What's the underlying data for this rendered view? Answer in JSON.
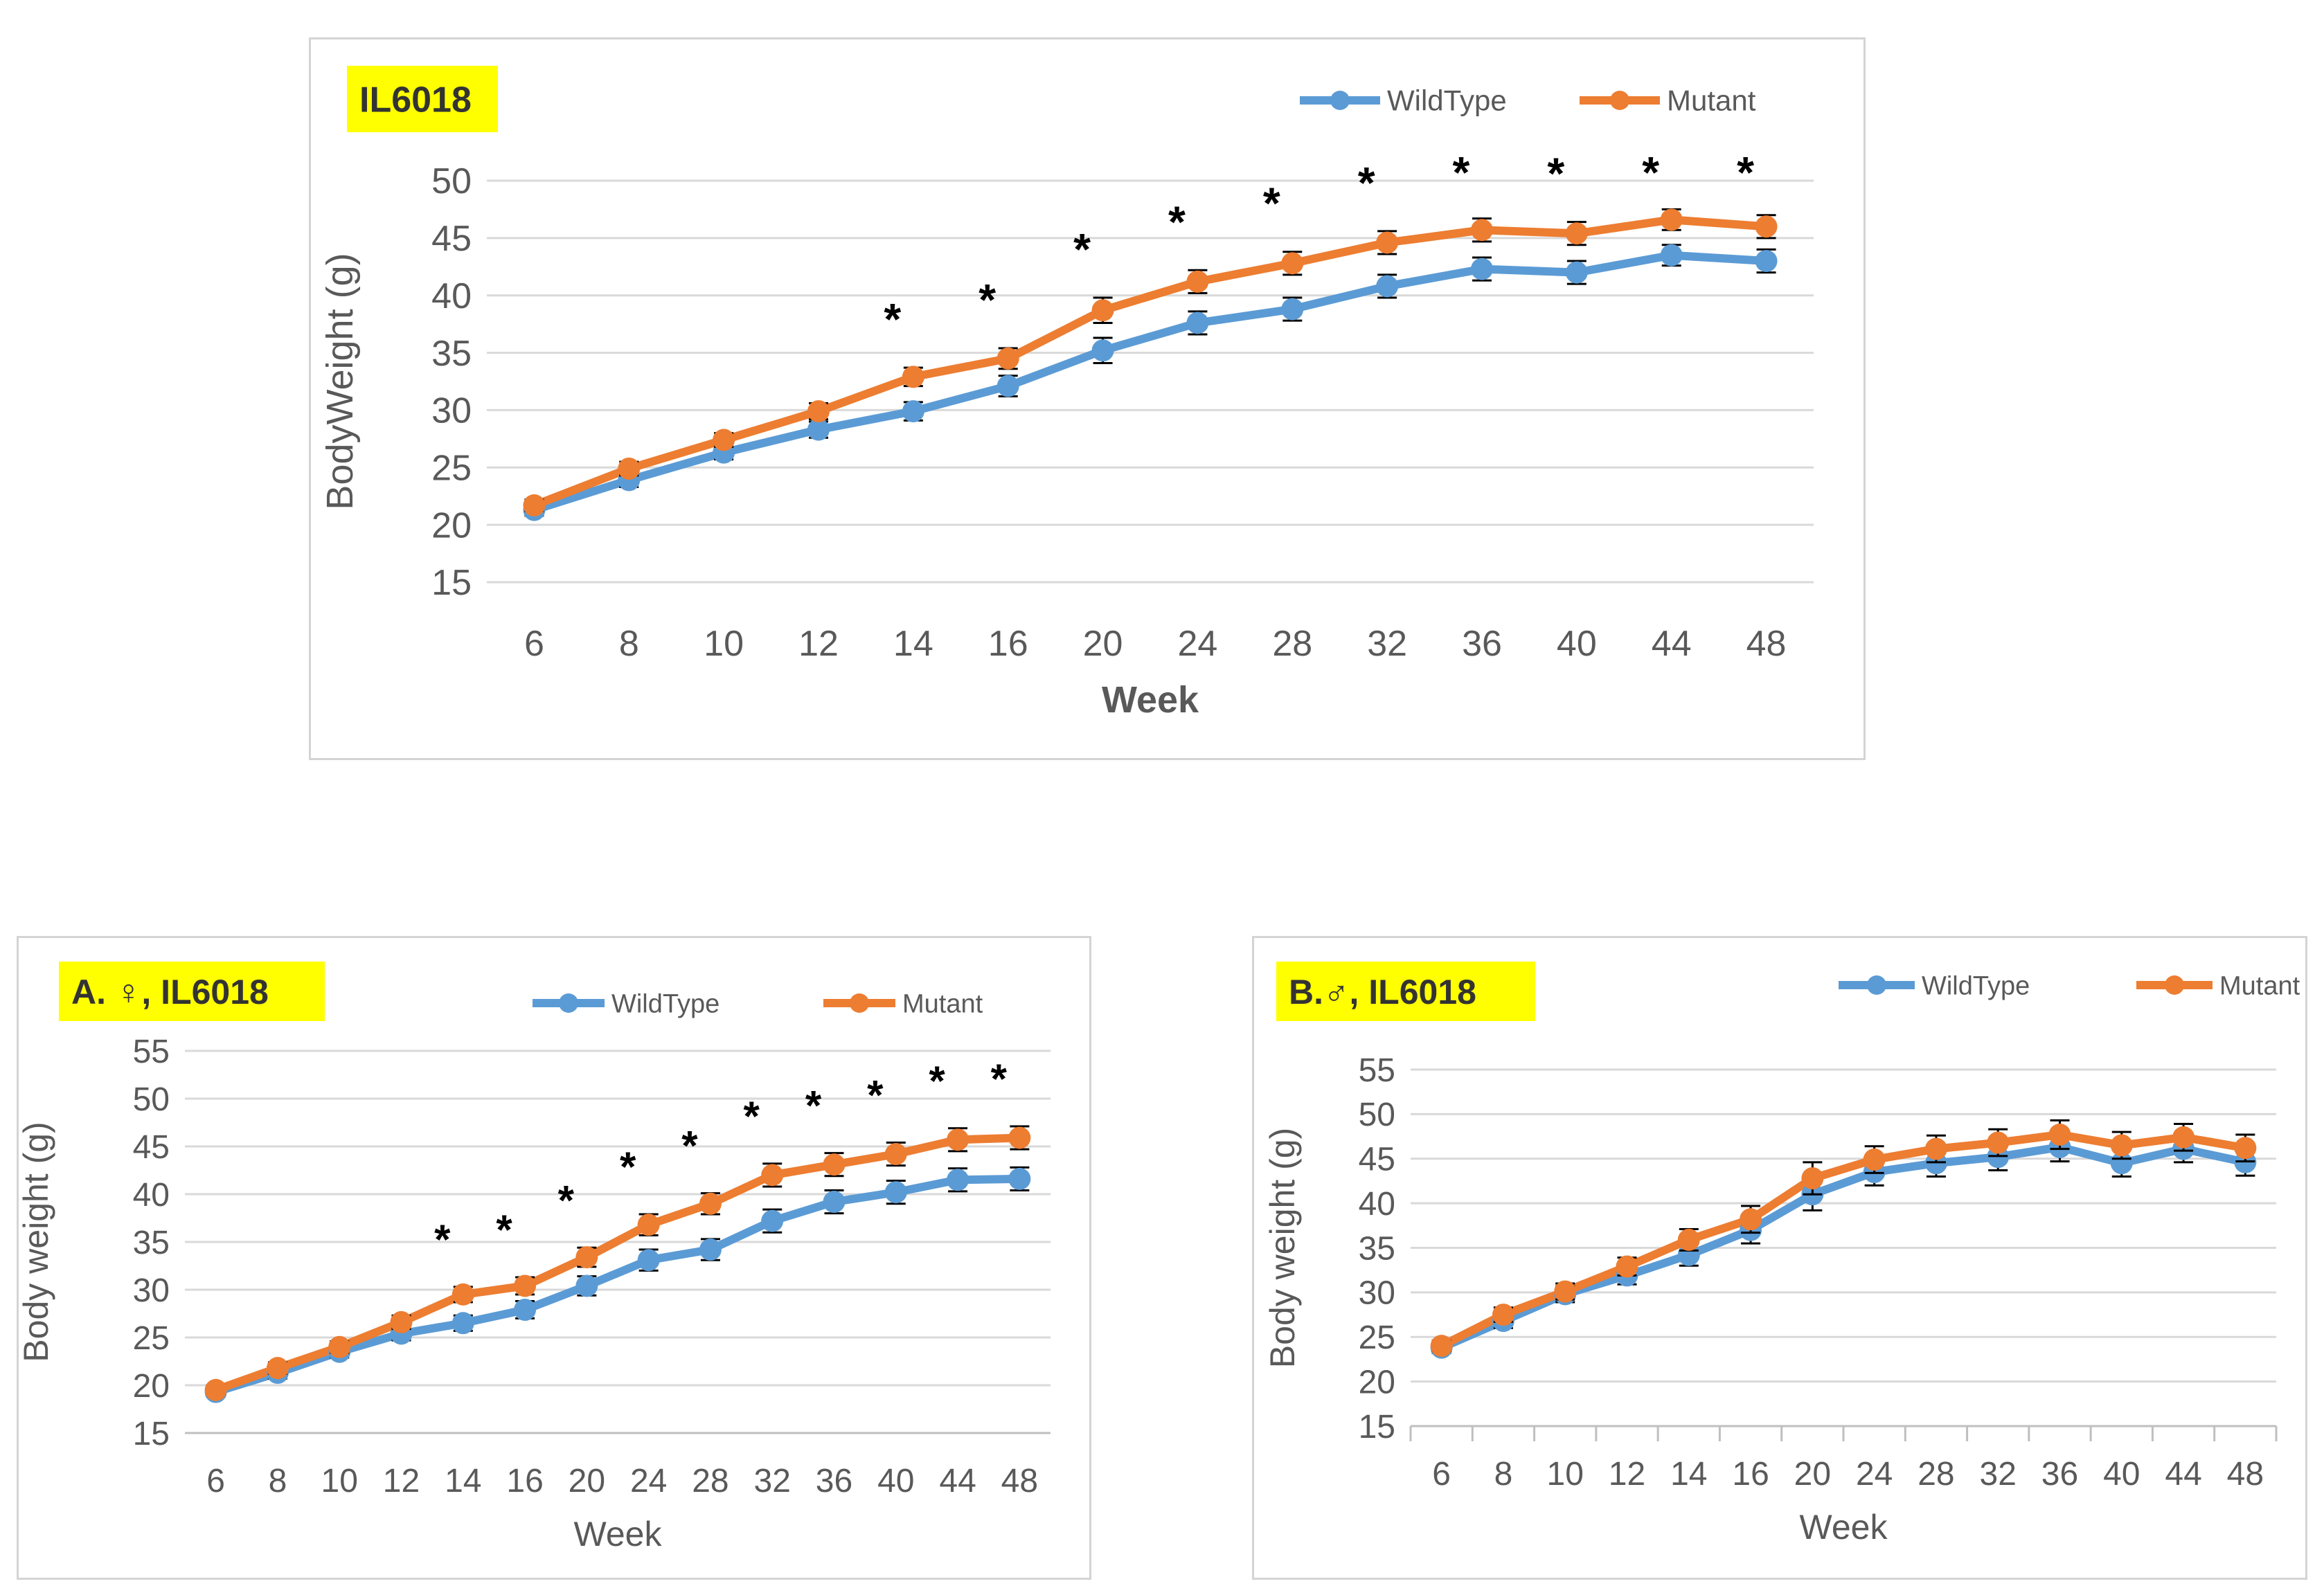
{
  "colors": {
    "wild": "#5b9bd5",
    "mutant": "#ed7d31",
    "title_bg": "#ffff00",
    "grid": "#d9d9d9"
  },
  "chart_data": [
    {
      "type": "line",
      "title": "IL6018",
      "xlabel": "Week",
      "ylabel": "BodyWeight (g)",
      "ylim": [
        15,
        50
      ],
      "yticks": [
        "15",
        "20",
        "25",
        "30",
        "35",
        "40",
        "45",
        "50"
      ],
      "categories": [
        "6",
        "8",
        "10",
        "12",
        "14",
        "16",
        "20",
        "24",
        "28",
        "32",
        "36",
        "40",
        "44",
        "48"
      ],
      "series": [
        {
          "name": "WildType",
          "values": [
            21.3,
            23.9,
            26.3,
            28.3,
            29.9,
            32.1,
            35.2,
            37.6,
            38.8,
            40.8,
            42.3,
            42.0,
            43.5,
            43.0
          ]
        },
        {
          "name": "Mutant",
          "values": [
            21.7,
            24.9,
            27.4,
            29.9,
            32.9,
            34.5,
            38.7,
            41.2,
            42.8,
            44.6,
            45.7,
            45.4,
            46.6,
            46.0
          ]
        }
      ],
      "errors": [
        0.5,
        0.6,
        0.6,
        0.7,
        0.8,
        0.9,
        1.1,
        1.0,
        1.0,
        1.0,
        1.0,
        1.0,
        0.9,
        1.0
      ],
      "significance": [
        "",
        "",
        "",
        "",
        "*",
        "*",
        "*",
        "*",
        "*",
        "*",
        "*",
        "*",
        "*",
        "*"
      ],
      "legend_position": "top-right"
    },
    {
      "type": "line",
      "title": "A. ♀, IL6018",
      "xlabel": "Week",
      "ylabel": "Body weight (g)",
      "ylim": [
        15,
        55
      ],
      "yticks": [
        "15",
        "20",
        "25",
        "30",
        "35",
        "40",
        "45",
        "50",
        "55"
      ],
      "categories": [
        "6",
        "8",
        "10",
        "12",
        "14",
        "16",
        "20",
        "24",
        "28",
        "32",
        "36",
        "40",
        "44",
        "48"
      ],
      "series": [
        {
          "name": "WildType",
          "values": [
            19.3,
            21.3,
            23.5,
            25.4,
            26.5,
            27.9,
            30.4,
            33.1,
            34.2,
            37.2,
            39.2,
            40.2,
            41.5,
            41.6
          ]
        },
        {
          "name": "Mutant",
          "values": [
            19.5,
            21.8,
            24.0,
            26.6,
            29.5,
            30.4,
            33.4,
            36.8,
            39.0,
            42.0,
            43.1,
            44.2,
            45.7,
            45.9
          ]
        }
      ],
      "errors": [
        0.5,
        0.6,
        0.6,
        0.7,
        0.8,
        0.9,
        1.0,
        1.1,
        1.1,
        1.2,
        1.2,
        1.2,
        1.2,
        1.2
      ],
      "significance": [
        "",
        "",
        "",
        "",
        "*",
        "*",
        "*",
        "*",
        "*",
        "*",
        "*",
        "*",
        "*",
        "*"
      ],
      "legend_position": "top-right"
    },
    {
      "type": "line",
      "title": "B.♂, IL6018",
      "xlabel": "Week",
      "ylabel": "Body weight (g)",
      "ylim": [
        15,
        55
      ],
      "yticks": [
        "15",
        "20",
        "25",
        "30",
        "35",
        "40",
        "45",
        "50",
        "55"
      ],
      "categories": [
        "6",
        "8",
        "10",
        "12",
        "14",
        "16",
        "20",
        "24",
        "28",
        "32",
        "36",
        "40",
        "44",
        "48"
      ],
      "series": [
        {
          "name": "WildType",
          "values": [
            23.8,
            26.8,
            29.8,
            31.9,
            34.2,
            37.0,
            41.0,
            43.5,
            44.5,
            45.2,
            46.3,
            44.5,
            46.1,
            44.6
          ]
        },
        {
          "name": "Mutant",
          "values": [
            24.0,
            27.5,
            30.1,
            32.9,
            35.9,
            38.2,
            42.8,
            44.9,
            46.1,
            46.8,
            47.7,
            46.5,
            47.4,
            46.2
          ]
        }
      ],
      "errors": [
        0.6,
        0.8,
        0.9,
        1.0,
        1.2,
        1.5,
        1.8,
        1.5,
        1.5,
        1.5,
        1.6,
        1.5,
        1.5,
        1.5
      ],
      "significance": [],
      "legend_position": "top-right"
    }
  ]
}
